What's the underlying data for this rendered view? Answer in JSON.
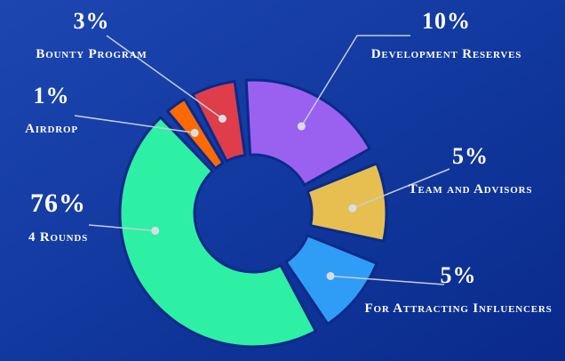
{
  "chart_data": {
    "type": "pie",
    "donut": true,
    "unit": "%",
    "legend_position": "around",
    "not_to_scale_in_source": true,
    "slices": [
      {
        "label": "Development Reserves",
        "value": 10,
        "pct_label": "10%",
        "color": "#9a61f0",
        "start_deg": 357,
        "end_deg": 61
      },
      {
        "label": "Team and Advisors",
        "value": 5,
        "pct_label": "5%",
        "color": "#e7bf51",
        "start_deg": 68,
        "end_deg": 102
      },
      {
        "label": "For Attracting Influencers",
        "value": 5,
        "pct_label": "5%",
        "color": "#2f9df5",
        "start_deg": 112,
        "end_deg": 146
      },
      {
        "label": "4 Rounds",
        "value": 76,
        "pct_label": "76%",
        "color": "#2df0a4",
        "start_deg": 152,
        "end_deg": 316
      },
      {
        "label": "Airdrop",
        "value": 1,
        "pct_label": "1%",
        "color": "#ff6a00",
        "start_deg": 320,
        "end_deg": 329
      },
      {
        "label": "Bounty Program",
        "value": 3,
        "pct_label": "3%",
        "color": "#de3d49",
        "start_deg": 333,
        "end_deg": 352
      }
    ]
  },
  "colors": {
    "background_start": "#1e46b2",
    "background_mid": "#123aa0",
    "background_end": "#0a2a8c",
    "slice_outline": "#0a2a8a",
    "leader_line": "#c5ccd9",
    "leader_dot": "#d8dde6",
    "label_text": "#ffffff"
  }
}
